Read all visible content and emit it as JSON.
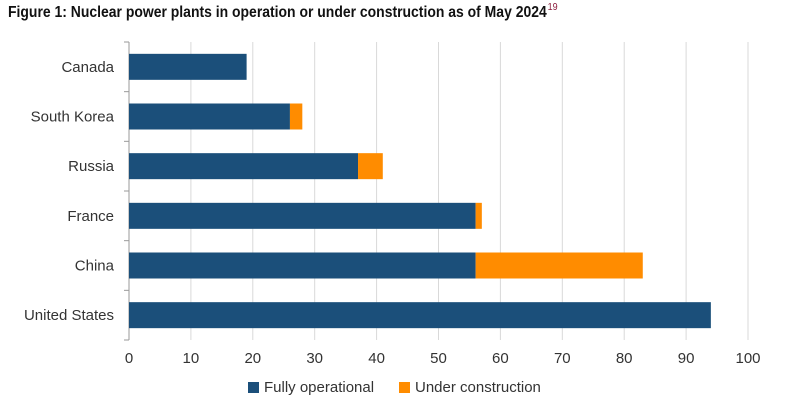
{
  "title": "Figure 1: Nuclear power plants in operation or under construction as of May 2024",
  "footnote_ref": "19",
  "colors": {
    "operational": "#1b4f7a",
    "construction": "#ff8c00",
    "grid": "#d9d9d9",
    "axis": "#9a9a9a"
  },
  "chart_data": {
    "type": "bar",
    "orientation": "horizontal",
    "stacked": true,
    "categories": [
      "Canada",
      "South Korea",
      "Russia",
      "France",
      "China",
      "United States"
    ],
    "series": [
      {
        "name": "Fully operational",
        "values": [
          19,
          26,
          37,
          56,
          56,
          94
        ]
      },
      {
        "name": "Under construction",
        "values": [
          0,
          2,
          4,
          1,
          27,
          0
        ]
      }
    ],
    "xlim": [
      0,
      100
    ],
    "xticks": [
      "0",
      "10",
      "20",
      "30",
      "40",
      "50",
      "60",
      "70",
      "80",
      "90",
      "100"
    ],
    "grid": "vertical",
    "legend": "bottom"
  }
}
